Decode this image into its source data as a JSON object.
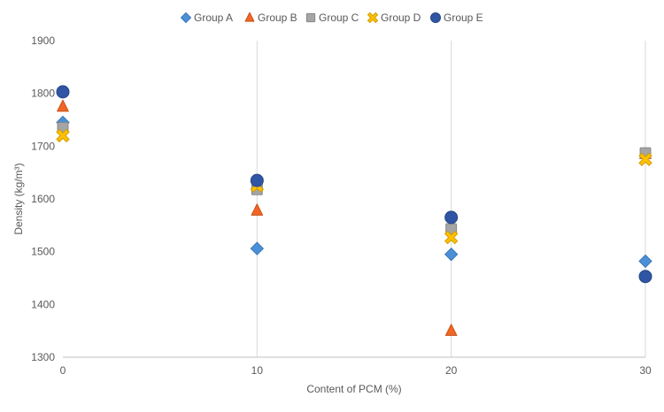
{
  "chart_data": {
    "type": "scatter",
    "title": "",
    "xlabel": "Content of PCM (%)",
    "ylabel": "Density (kg/m³)",
    "xlim": [
      0,
      30
    ],
    "ylim": [
      1300,
      1900
    ],
    "xticks": [
      0,
      10,
      20,
      30
    ],
    "yticks": [
      1300,
      1400,
      1500,
      1600,
      1700,
      1800,
      1900
    ],
    "grid": "vertical",
    "legend": "top",
    "series": [
      {
        "name": "Group A",
        "marker": "diamond",
        "color": "#4a90d9",
        "x": [
          0,
          10,
          20,
          30
        ],
        "y": [
          1745,
          1506,
          1495,
          1482
        ]
      },
      {
        "name": "Group B",
        "marker": "triangle",
        "color": "#f26522",
        "x": [
          0,
          10,
          20,
          30
        ],
        "y": [
          1775,
          1578,
          1350,
          1685
        ]
      },
      {
        "name": "Group C",
        "marker": "square",
        "color": "#a5a5a5",
        "x": [
          0,
          10,
          20,
          30
        ],
        "y": [
          1735,
          1618,
          1543,
          1687
        ]
      },
      {
        "name": "Group D",
        "marker": "cross",
        "color": "#ffc000",
        "x": [
          0,
          10,
          20,
          30
        ],
        "y": [
          1720,
          1625,
          1527,
          1675
        ]
      },
      {
        "name": "Group E",
        "marker": "circle",
        "color": "#2f55a4",
        "x": [
          0,
          10,
          20,
          30
        ],
        "y": [
          1803,
          1635,
          1565,
          1453
        ]
      }
    ]
  }
}
